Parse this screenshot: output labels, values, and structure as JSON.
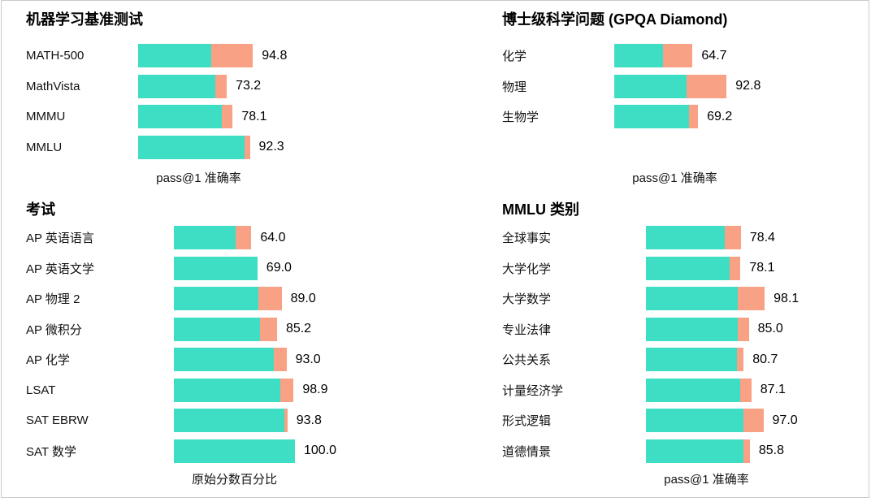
{
  "colors": {
    "base_segment": "#3EDEC4",
    "gain_segment": "#F9A185",
    "frame_border": "#cbcbcb",
    "text": "#000000"
  },
  "chart_data": [
    {
      "type": "bar",
      "orientation": "horizontal",
      "stacked": true,
      "grid": false,
      "legend": "none",
      "title": "机器学习基准测试",
      "xlabel": "pass@1 准确率",
      "xlim": [
        0,
        100
      ],
      "categories": [
        "MATH-500",
        "MathVista",
        "MMMU",
        "MMLU"
      ],
      "series": [
        {
          "name": "base (teal)",
          "values": [
            60.3,
            63.8,
            69.1,
            88.0
          ]
        },
        {
          "name": "gain (orange)",
          "values": [
            34.5,
            9.4,
            9.0,
            4.3
          ]
        }
      ],
      "totals": [
        94.8,
        73.2,
        78.1,
        92.3
      ],
      "value_labels": [
        "94.8",
        "73.2",
        "78.1",
        "92.3"
      ]
    },
    {
      "type": "bar",
      "orientation": "horizontal",
      "stacked": true,
      "grid": false,
      "legend": "none",
      "title": "博士级科学问题 (GPQA Diamond)",
      "xlabel": "pass@1 准确率",
      "xlim": [
        0,
        100
      ],
      "categories": [
        "化学",
        "物理",
        "生物学"
      ],
      "series": [
        {
          "name": "base (teal)",
          "values": [
            40.5,
            60.0,
            61.7
          ]
        },
        {
          "name": "gain (orange)",
          "values": [
            24.2,
            32.8,
            7.5
          ]
        }
      ],
      "totals": [
        64.7,
        92.8,
        69.2
      ],
      "value_labels": [
        "64.7",
        "92.8",
        "69.2"
      ]
    },
    {
      "type": "bar",
      "orientation": "horizontal",
      "stacked": true,
      "grid": false,
      "legend": "none",
      "title": "考试",
      "xlabel": "原始分数百分比",
      "xlim": [
        0,
        100
      ],
      "categories": [
        "AP 英语语言",
        "AP 英语文学",
        "AP 物理 2",
        "AP 微积分",
        "AP 化学",
        "LSAT",
        "SAT EBRW",
        "SAT 数学"
      ],
      "series": [
        {
          "name": "base (teal)",
          "values": [
            51.3,
            69.0,
            69.8,
            71.3,
            82.8,
            88.1,
            91.1,
            100.0
          ]
        },
        {
          "name": "gain (orange)",
          "values": [
            12.7,
            0.0,
            19.2,
            13.9,
            10.2,
            10.8,
            2.7,
            0.0
          ]
        }
      ],
      "totals": [
        64.0,
        69.0,
        89.0,
        85.2,
        93.0,
        98.9,
        93.8,
        100.0
      ],
      "value_labels": [
        "64.0",
        "69.0",
        "89.0",
        "85.2",
        "93.0",
        "98.9",
        "93.8",
        "100.0"
      ]
    },
    {
      "type": "bar",
      "orientation": "horizontal",
      "stacked": true,
      "grid": false,
      "legend": "none",
      "title": "MMLU 类别",
      "xlabel": "pass@1 准确率",
      "xlim": [
        0,
        100
      ],
      "categories": [
        "全球事实",
        "大学化学",
        "大学数学",
        "专业法律",
        "公共关系",
        "计量经济学",
        "形式逻辑",
        "道德情景"
      ],
      "series": [
        {
          "name": "base (teal)",
          "values": [
            65.4,
            69.4,
            75.7,
            76.0,
            75.5,
            78.0,
            80.3,
            80.4
          ]
        },
        {
          "name": "gain (orange)",
          "values": [
            13.0,
            8.7,
            22.4,
            9.0,
            5.2,
            9.1,
            16.7,
            5.4
          ]
        }
      ],
      "totals": [
        78.4,
        78.1,
        98.1,
        85.0,
        80.7,
        87.1,
        97.0,
        85.8
      ],
      "value_labels": [
        "78.4",
        "78.1",
        "98.1",
        "85.0",
        "80.7",
        "87.1",
        "97.0",
        "85.8"
      ]
    }
  ]
}
